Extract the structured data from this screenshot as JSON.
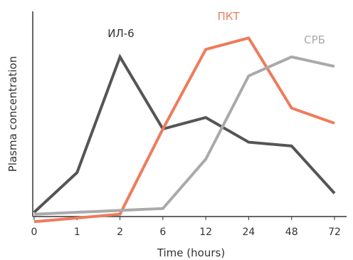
{
  "chart_data": {
    "type": "line",
    "title": "",
    "xlabel": "Time (hours)",
    "ylabel": "Plasma concentration",
    "categories": [
      "0",
      "1",
      "2",
      "6",
      "12",
      "24",
      "48",
      "72"
    ],
    "ylim": [
      0,
      100
    ],
    "grid": false,
    "legend": "inline",
    "series": [
      {
        "name": "ИЛ-6",
        "color": "#555555",
        "values": [
          3,
          24,
          85,
          47,
          53,
          40,
          38,
          13
        ]
      },
      {
        "name": "ПКТ",
        "color": "#ee7b5c",
        "values": [
          -2,
          0,
          2,
          47,
          89,
          95,
          58,
          50
        ]
      },
      {
        "name": "СРБ",
        "color": "#aaaaaa",
        "values": [
          2,
          3,
          4,
          5,
          31,
          75,
          85,
          80
        ]
      }
    ]
  }
}
